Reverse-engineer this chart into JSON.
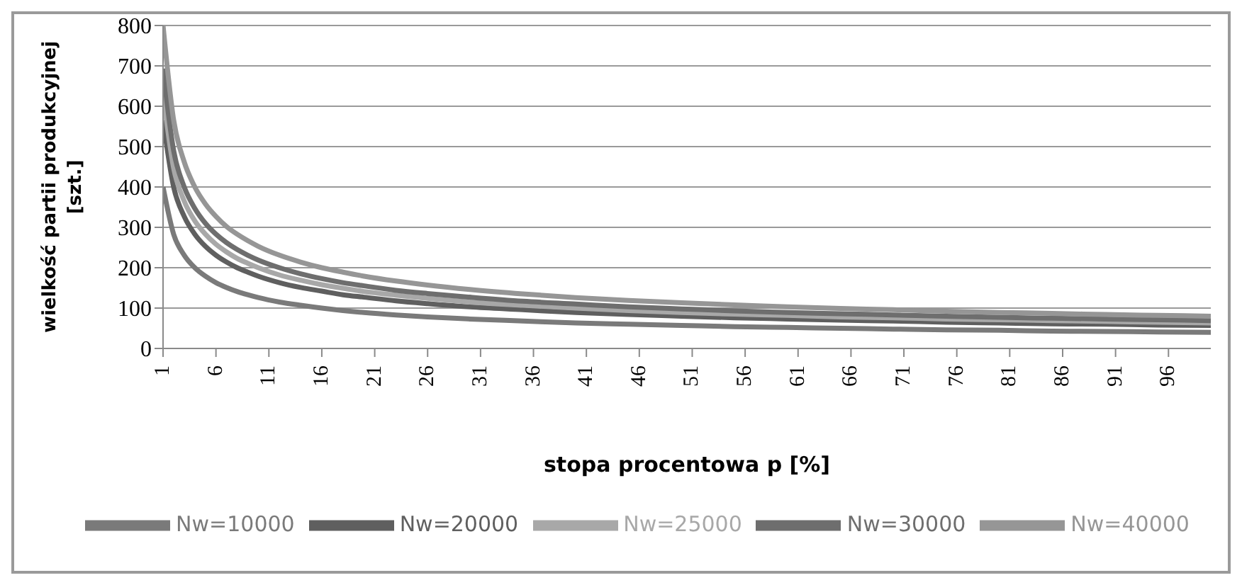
{
  "chart_data": {
    "type": "line",
    "xlabel": "stopa procentowa p [%]",
    "ylabel": "wielkość partii produkcyjnej [szt.]",
    "x": [
      1,
      2,
      3,
      4,
      5,
      6,
      7,
      8,
      9,
      10,
      12,
      14,
      16,
      18,
      20,
      23,
      26,
      30,
      35,
      40,
      45,
      50,
      55,
      60,
      65,
      70,
      75,
      80,
      85,
      90,
      95,
      100
    ],
    "xlim": [
      1,
      100
    ],
    "xticks": [
      1,
      6,
      11,
      16,
      21,
      26,
      31,
      36,
      41,
      46,
      51,
      56,
      61,
      66,
      71,
      76,
      81,
      86,
      91,
      96
    ],
    "ylim": [
      0,
      800
    ],
    "yticks": [
      0,
      100,
      200,
      300,
      400,
      500,
      600,
      700,
      800
    ],
    "grid": "y",
    "legend": "bottom",
    "marker": "none",
    "line_style": "solid",
    "series": [
      {
        "name": "Nw=10000",
        "color": "#7a7a7a",
        "values": [
          400,
          283,
          231,
          200,
          179,
          163,
          151,
          141,
          133,
          126,
          115,
          107,
          100,
          94,
          89,
          83,
          78,
          73,
          68,
          63,
          60,
          57,
          54,
          52,
          50,
          48,
          46,
          45,
          43,
          42,
          41,
          40
        ]
      },
      {
        "name": "Nw=20000",
        "color": "#5f5f5f",
        "values": [
          566,
          400,
          327,
          283,
          253,
          231,
          214,
          200,
          189,
          179,
          163,
          151,
          142,
          133,
          127,
          118,
          111,
          103,
          96,
          89,
          84,
          80,
          76,
          73,
          70,
          68,
          65,
          63,
          61,
          60,
          58,
          57
        ]
      },
      {
        "name": "Nw=25000",
        "color": "#a8a8a8",
        "values": [
          632,
          447,
          365,
          316,
          283,
          258,
          239,
          223,
          211,
          200,
          182,
          169,
          158,
          149,
          141,
          132,
          124,
          115,
          107,
          100,
          94,
          89,
          85,
          82,
          78,
          76,
          73,
          71,
          69,
          67,
          65,
          63
        ]
      },
      {
        "name": "Nw=30000",
        "color": "#6e6e6e",
        "values": [
          693,
          490,
          400,
          347,
          310,
          283,
          262,
          245,
          231,
          219,
          200,
          185,
          173,
          163,
          155,
          144,
          136,
          127,
          117,
          110,
          103,
          98,
          93,
          89,
          86,
          83,
          80,
          77,
          75,
          73,
          71,
          69
        ]
      },
      {
        "name": "Nw=40000",
        "color": "#969696",
        "values": [
          800,
          566,
          462,
          400,
          358,
          327,
          302,
          283,
          267,
          253,
          231,
          214,
          200,
          189,
          179,
          167,
          157,
          146,
          135,
          126,
          119,
          113,
          108,
          103,
          99,
          96,
          92,
          89,
          87,
          84,
          82,
          80
        ]
      }
    ]
  }
}
